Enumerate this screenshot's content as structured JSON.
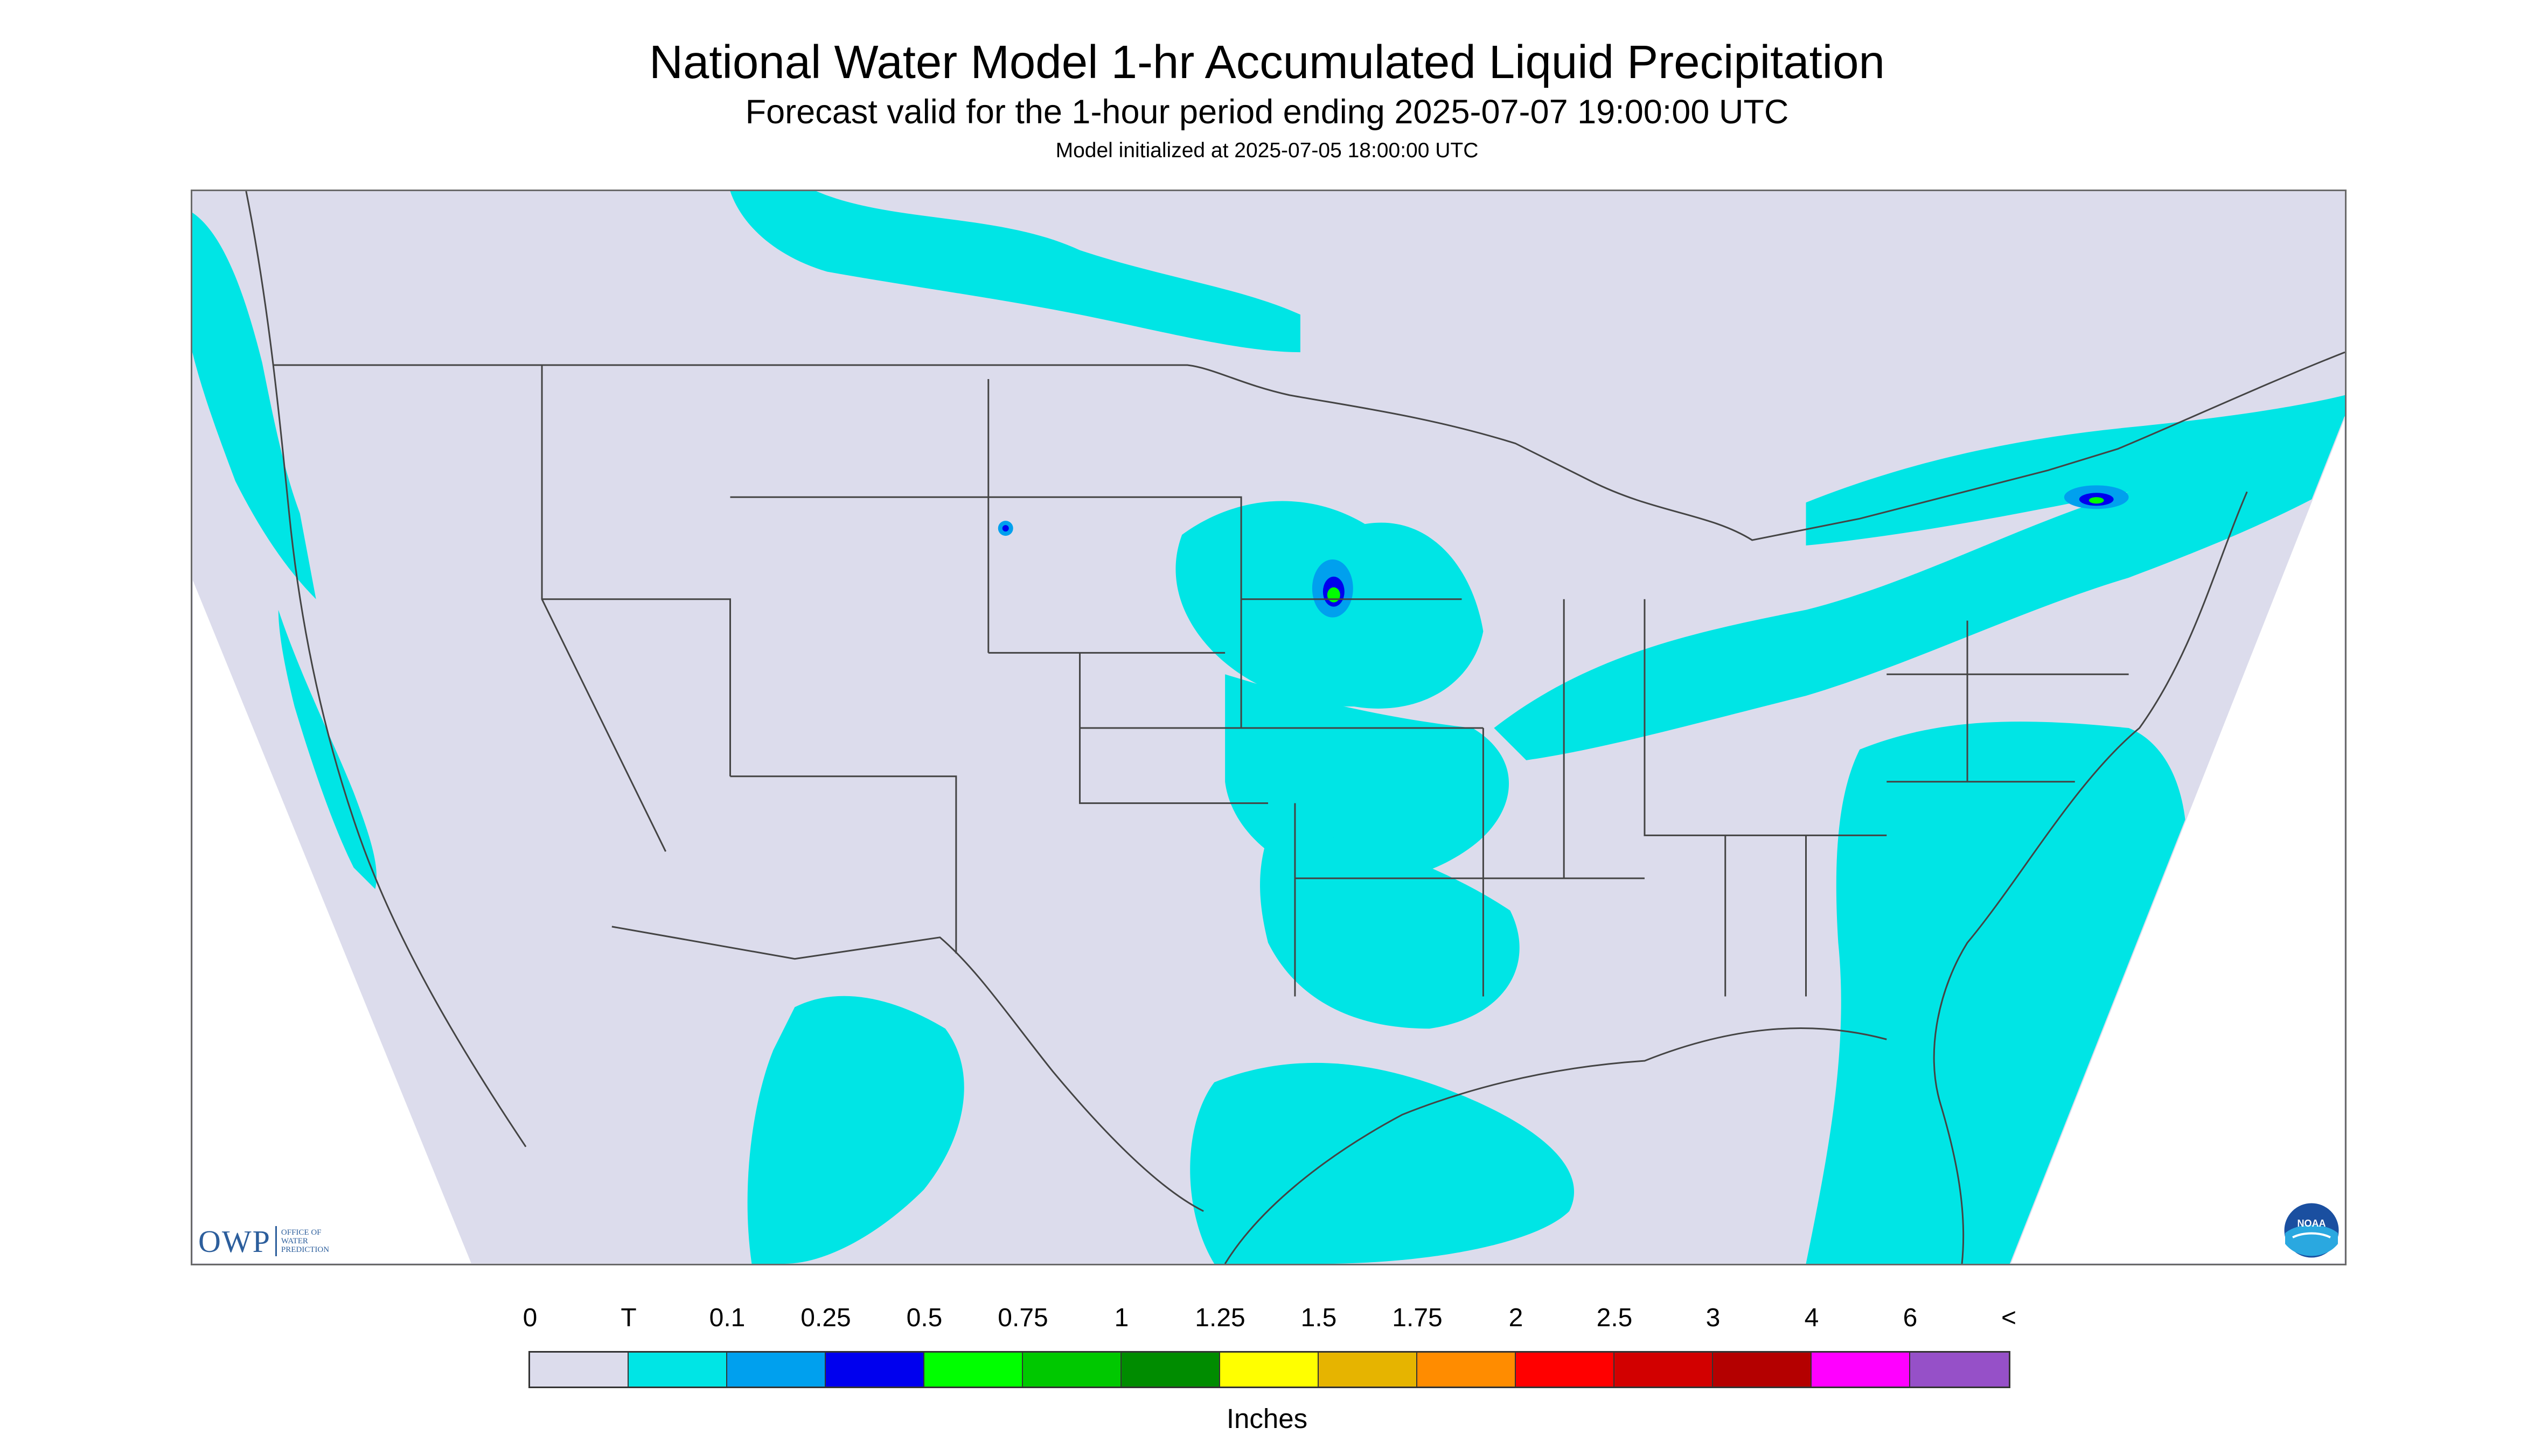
{
  "header": {
    "title": "National Water Model 1-hr Accumulated Liquid Precipitation",
    "subtitle": "Forecast valid for the 1-hour period ending 2025-07-07 19:00:00 UTC",
    "init_line": "Model initialized at 2025-07-05 18:00:00 UTC"
  },
  "map": {
    "background_color": "#dcdcec",
    "outside_domain_color": "#ffffff",
    "boundary_color": "#444444"
  },
  "logos": {
    "owp_letters": "OWP",
    "owp_text": "OFFICE OF\nWATER\nPREDICTION",
    "noaa_text": "NOAA"
  },
  "legend": {
    "tick_labels": [
      "0",
      "T",
      "0.1",
      "0.25",
      "0.5",
      "0.75",
      "1",
      "1.25",
      "1.5",
      "1.75",
      "2",
      "2.5",
      "3",
      "4",
      "6",
      "<"
    ],
    "colors": [
      "#dcdcec",
      "#00e5e5",
      "#00a0ee",
      "#0000ee",
      "#00ff00",
      "#00c800",
      "#008c00",
      "#ffff00",
      "#e6b400",
      "#ff8c00",
      "#ff0000",
      "#d20000",
      "#b40000",
      "#ff00ff",
      "#9650c8"
    ],
    "units": "Inches"
  }
}
